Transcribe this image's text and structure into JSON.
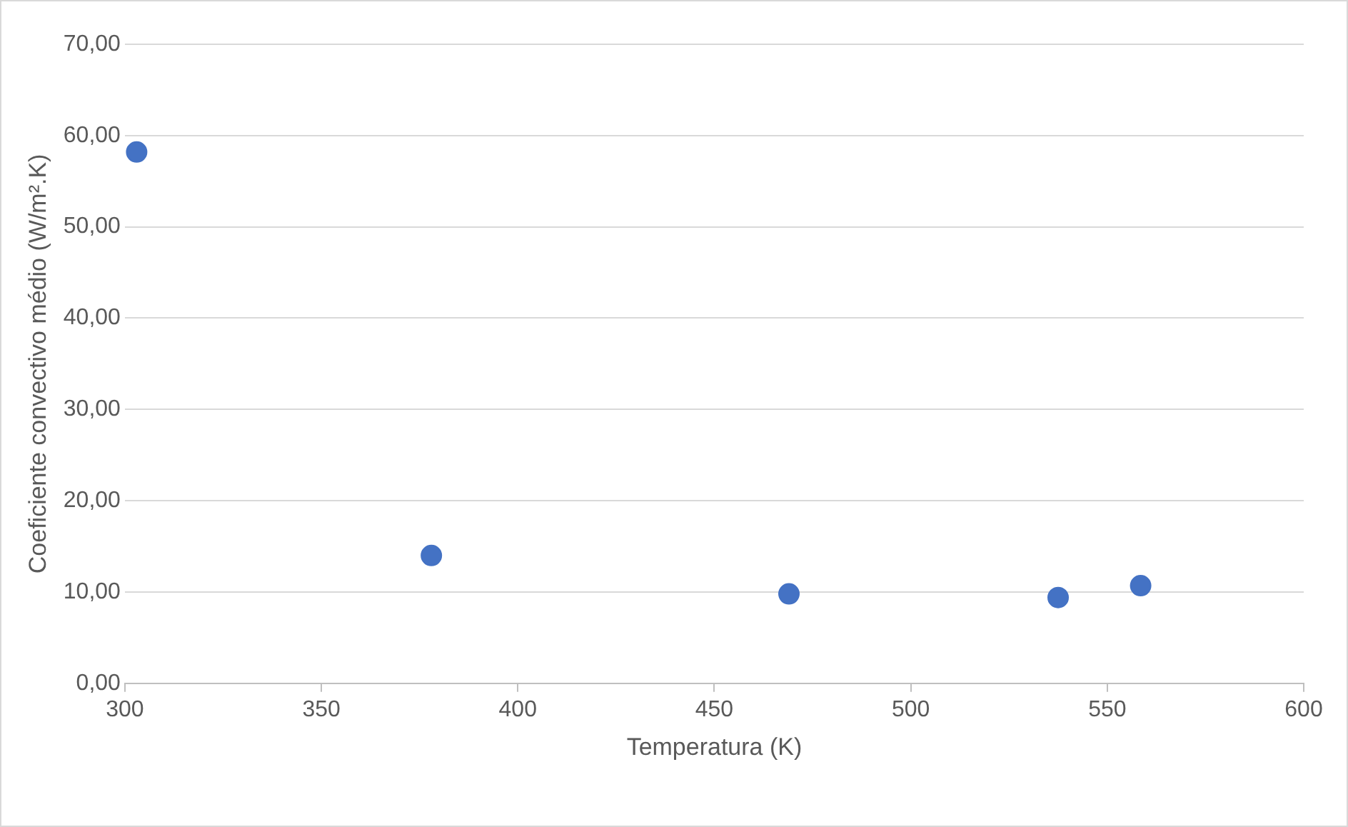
{
  "chart_data": {
    "type": "scatter",
    "xlabel": "Temperatura (K)",
    "ylabel": "Coeficiente convectivo médio (W/m².K)",
    "x": [
      303,
      378,
      469,
      537.5,
      558.5
    ],
    "series": [
      {
        "color": "#4472c4",
        "values": [
          58.2,
          14,
          9.8,
          9.4,
          10.7
        ]
      }
    ],
    "xlim": [
      300,
      600
    ],
    "xticks": [
      300,
      350,
      400,
      450,
      500,
      550,
      600
    ],
    "ylim": [
      0,
      70
    ],
    "yticks": [
      {
        "value": 0,
        "label": "0,00"
      },
      {
        "value": 10,
        "label": "10,00"
      },
      {
        "value": 20,
        "label": "20,00"
      },
      {
        "value": 30,
        "label": "30,00"
      },
      {
        "value": 40,
        "label": "40,00"
      },
      {
        "value": 50,
        "label": "50,00"
      },
      {
        "value": 60,
        "label": "60,00"
      },
      {
        "value": 70,
        "label": "70,00"
      }
    ],
    "grid": "y",
    "marker": "circle"
  }
}
